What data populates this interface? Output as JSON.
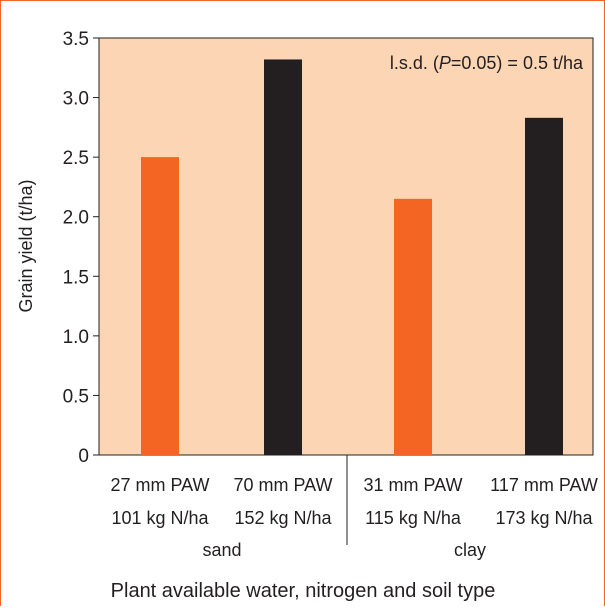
{
  "chart_data": {
    "type": "bar",
    "ylabel": "Grain yield (t/ha)",
    "xlabel": "Plant available water, nitrogen and soil type",
    "ylim": [
      0,
      3.5
    ],
    "yticks": [
      "0",
      "0.5",
      "1.0",
      "1.5",
      "2.0",
      "2.5",
      "3.0",
      "3.5"
    ],
    "annotation": {
      "prefix": "l.s.d. (",
      "italic": "P",
      "suffix": "=0.05) = 0.5 t/ha"
    },
    "categories": [
      {
        "line1": "27 mm PAW",
        "line2": "101 kg N/ha"
      },
      {
        "line1": "70 mm PAW",
        "line2": "152 kg N/ha"
      },
      {
        "line1": "31 mm PAW",
        "line2": "115 kg N/ha"
      },
      {
        "line1": "117 mm PAW",
        "line2": "173 kg N/ha"
      }
    ],
    "groups": [
      "sand",
      "clay"
    ],
    "values": [
      2.5,
      3.32,
      2.15,
      2.83
    ],
    "bar_colors": [
      "#f26522",
      "#231f20",
      "#f26522",
      "#231f20"
    ],
    "plot_background": "#fcd5b5",
    "accent_color": "#f26522"
  }
}
